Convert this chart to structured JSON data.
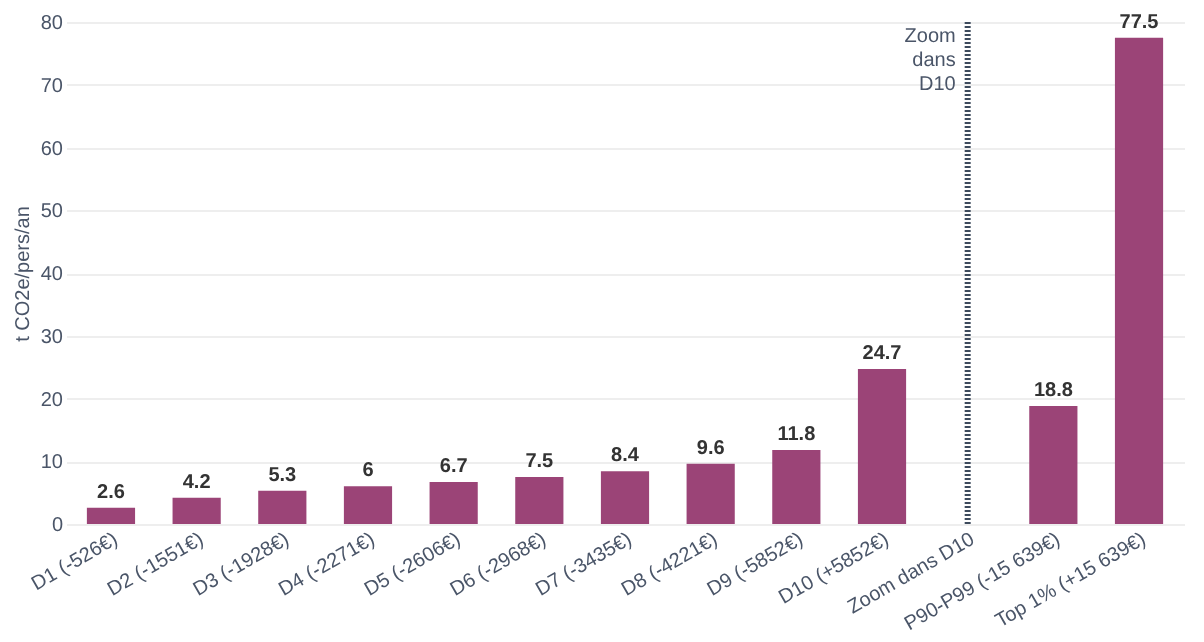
{
  "chart_data": {
    "type": "bar",
    "ylabel": "t CO2e/pers/an",
    "categories": [
      "D1 (-526€)",
      "D2 (-1551€)",
      "D3 (-1928€)",
      "D4 (-2271€)",
      "D5 (-2606€)",
      "D6 (-2968€)",
      "D7 (-3435€)",
      "D8 (-4221€)",
      "D9 (-5852€)",
      "D10 (+5852€)",
      "Zoom dans D10",
      "P90-P99 (-15 639€)",
      "Top 1% (+15 639€)"
    ],
    "values": [
      2.6,
      4.2,
      5.3,
      6,
      6.7,
      7.5,
      8.4,
      9.6,
      11.8,
      24.7,
      null,
      18.8,
      77.5
    ],
    "color": "#9b4477",
    "ylim": [
      0,
      80
    ],
    "yticks": [
      0,
      10,
      20,
      30,
      40,
      50,
      60,
      70,
      80
    ],
    "grid": "y",
    "data_labels": true,
    "ref_lines": [
      {
        "axis": "x",
        "value": "Zoom dans D10",
        "label": "Zoom dans D10",
        "line_style": "dotted",
        "color": "#3d4a5c"
      }
    ]
  }
}
